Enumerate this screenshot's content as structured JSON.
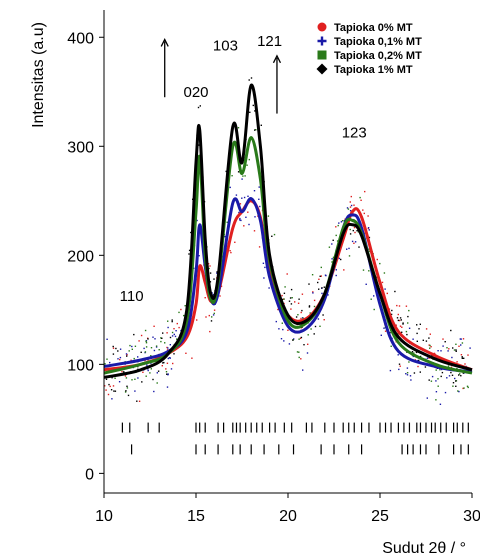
{
  "chart_data": {
    "type": "line",
    "xlabel": "Sudut 2θ / °",
    "ylabel": "Intensitas (a.u)",
    "xlim": [
      10,
      30
    ],
    "ylim": [
      -18,
      425
    ],
    "x_ticks": [
      10,
      15,
      20,
      25,
      30
    ],
    "y_ticks": [
      0,
      100,
      200,
      300,
      400
    ],
    "grid": false,
    "legend_position": "top-right",
    "series": [
      {
        "name": "Tapioka 0% MT",
        "color": "#e02020",
        "marker": "circle",
        "x": [
          10,
          12,
          13.5,
          14.5,
          15.0,
          15.2,
          15.5,
          15.8,
          16.2,
          17.0,
          17.5,
          18.0,
          18.5,
          19.0,
          20.0,
          21.0,
          22.0,
          23.0,
          23.5,
          24.0,
          25.0,
          26.0,
          28.0,
          30.0
        ],
        "y": [
          95,
          100,
          110,
          125,
          155,
          190,
          175,
          158,
          165,
          225,
          240,
          250,
          235,
          185,
          145,
          142,
          165,
          215,
          240,
          235,
          175,
          130,
          108,
          95
        ]
      },
      {
        "name": "Tapioka 0,1% MT",
        "color": "#1a1aa8",
        "marker": "plus",
        "x": [
          10,
          12,
          13.5,
          14.5,
          15.0,
          15.2,
          15.5,
          15.8,
          16.2,
          17.0,
          17.5,
          18.0,
          18.5,
          19.0,
          20.0,
          21.0,
          22.0,
          23.0,
          23.5,
          24.0,
          25.0,
          26.0,
          28.0,
          30.0
        ],
        "y": [
          98,
          104,
          112,
          130,
          185,
          228,
          190,
          160,
          165,
          248,
          240,
          252,
          232,
          180,
          135,
          133,
          160,
          225,
          237,
          225,
          155,
          112,
          98,
          93
        ]
      },
      {
        "name": "Tapioka 0,2% MT",
        "color": "#2a7a1a",
        "marker": "square",
        "x": [
          10,
          12,
          13.5,
          14.5,
          15.0,
          15.2,
          15.5,
          15.8,
          16.2,
          17.0,
          17.5,
          18.0,
          18.5,
          19.0,
          20.0,
          21.0,
          22.0,
          23.0,
          23.5,
          24.0,
          25.0,
          26.0,
          28.0,
          30.0
        ],
        "y": [
          92,
          100,
          110,
          140,
          240,
          290,
          200,
          160,
          175,
          300,
          275,
          308,
          270,
          195,
          140,
          138,
          165,
          225,
          232,
          220,
          165,
          120,
          100,
          92
        ]
      },
      {
        "name": "Tapioka 1% MT",
        "color": "#000000",
        "marker": "diamond",
        "x": [
          10,
          12,
          13.5,
          14.5,
          15.0,
          15.2,
          15.5,
          15.8,
          16.2,
          17.0,
          17.5,
          18.0,
          18.5,
          19.0,
          20.0,
          21.0,
          22.0,
          23.0,
          23.5,
          24.0,
          25.0,
          26.0,
          28.0,
          30.0
        ],
        "y": [
          88,
          95,
          110,
          150,
          285,
          315,
          215,
          165,
          180,
          318,
          285,
          356,
          300,
          200,
          145,
          140,
          165,
          220,
          228,
          218,
          165,
          125,
          105,
          95
        ]
      }
    ],
    "peak_labels": [
      {
        "text": "110",
        "x": 11.5,
        "y": 158
      },
      {
        "text": "020",
        "x": 15.0,
        "y": 345
      },
      {
        "text": "103",
        "x": 16.6,
        "y": 388
      },
      {
        "text": "121",
        "x": 19.0,
        "y": 392
      },
      {
        "text": "123",
        "x": 23.6,
        "y": 308
      }
    ],
    "arrows": [
      {
        "x": 13.3,
        "y_from": 345,
        "y_to": 398
      },
      {
        "x": 19.4,
        "y_from": 330,
        "y_to": 383
      }
    ],
    "reference_ticks": [
      {
        "y": 42,
        "x": [
          11.0,
          11.4,
          12.4,
          13.0,
          15.0,
          15.2,
          15.5,
          16.2,
          16.5,
          17.0,
          17.2,
          17.4,
          17.7,
          18.0,
          18.3,
          18.6,
          19.0,
          19.3,
          19.8,
          20.2,
          21.0,
          21.3,
          22.0,
          22.5,
          23.0,
          23.3,
          23.6,
          24.0,
          24.4,
          25.0,
          25.3,
          25.6,
          26.0,
          26.3,
          26.6,
          27.0,
          27.2,
          27.5,
          27.8,
          28.0,
          28.3,
          28.6,
          29.0,
          29.2,
          29.5,
          29.8
        ]
      },
      {
        "y": 22,
        "x": [
          11.5,
          15.0,
          15.5,
          16.2,
          17.0,
          17.4,
          18.0,
          18.7,
          19.5,
          20.3,
          21.8,
          22.5,
          23.3,
          24.0,
          26.2,
          26.5,
          26.8,
          27.2,
          27.5,
          28.2,
          29.0,
          29.4,
          29.8
        ]
      }
    ]
  }
}
